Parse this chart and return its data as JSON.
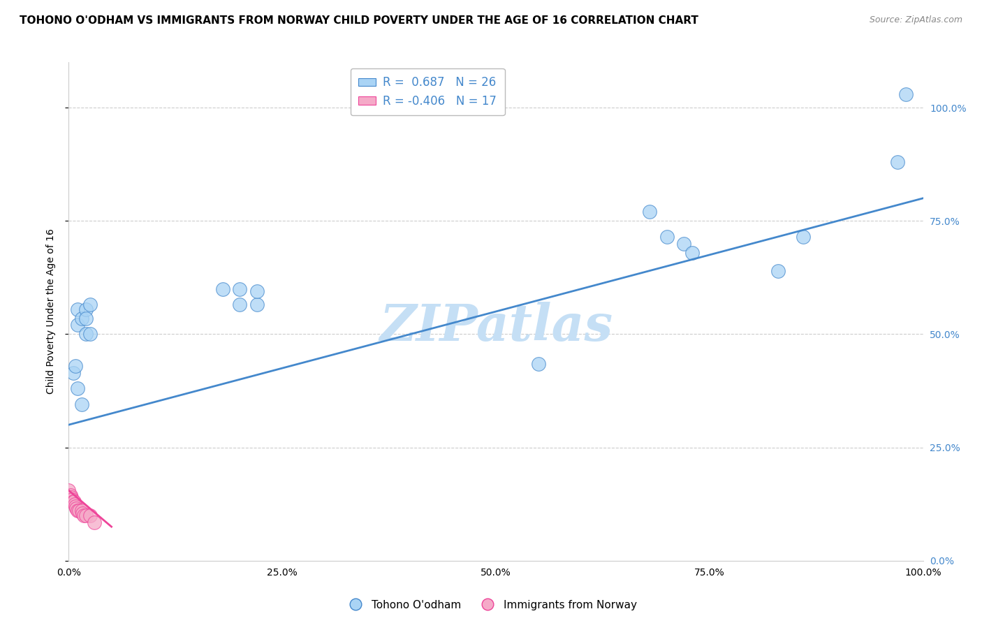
{
  "title": "TOHONO O'ODHAM VS IMMIGRANTS FROM NORWAY CHILD POVERTY UNDER THE AGE OF 16 CORRELATION CHART",
  "source": "Source: ZipAtlas.com",
  "ylabel": "Child Poverty Under the Age of 16",
  "watermark": "ZIPatlas",
  "legend_box": {
    "blue_r": "0.687",
    "blue_n": "26",
    "pink_r": "-0.406",
    "pink_n": "17"
  },
  "blue_scatter_x": [
    0.01,
    0.01,
    0.015,
    0.02,
    0.02,
    0.02,
    0.025,
    0.025,
    0.2,
    0.22,
    0.22,
    0.55,
    0.68,
    0.7,
    0.72,
    0.73,
    0.83,
    0.86,
    0.97,
    0.98,
    0.005,
    0.008,
    0.01,
    0.015,
    0.18,
    0.2
  ],
  "blue_scatter_y": [
    0.555,
    0.52,
    0.535,
    0.555,
    0.535,
    0.5,
    0.565,
    0.5,
    0.6,
    0.565,
    0.595,
    0.435,
    0.77,
    0.715,
    0.7,
    0.68,
    0.64,
    0.715,
    0.88,
    1.03,
    0.415,
    0.43,
    0.38,
    0.345,
    0.6,
    0.565
  ],
  "pink_scatter_x": [
    0.0,
    0.002,
    0.003,
    0.004,
    0.005,
    0.006,
    0.007,
    0.008,
    0.009,
    0.01,
    0.012,
    0.015,
    0.016,
    0.018,
    0.02,
    0.025,
    0.03
  ],
  "pink_scatter_y": [
    0.155,
    0.145,
    0.14,
    0.135,
    0.13,
    0.13,
    0.125,
    0.12,
    0.115,
    0.11,
    0.11,
    0.11,
    0.105,
    0.1,
    0.1,
    0.1,
    0.085
  ],
  "blue_line_x": [
    0.0,
    1.0
  ],
  "blue_line_y": [
    0.3,
    0.8
  ],
  "pink_line_x": [
    0.0,
    0.05
  ],
  "pink_line_y": [
    0.155,
    0.075
  ],
  "blue_color": "#aad4f5",
  "pink_color": "#f5aac8",
  "blue_line_color": "#4488cc",
  "pink_line_color": "#ee4499",
  "dot_size": 200,
  "alpha": 0.75,
  "background_color": "#ffffff",
  "grid_color": "#cccccc",
  "xlim": [
    0.0,
    1.0
  ],
  "ylim": [
    0.0,
    1.1
  ],
  "xticks": [
    0.0,
    0.25,
    0.5,
    0.75,
    1.0
  ],
  "xtick_labels": [
    "0.0%",
    "25.0%",
    "50.0%",
    "75.0%",
    "100.0%"
  ],
  "yticks": [
    0.0,
    0.25,
    0.5,
    0.75,
    1.0
  ],
  "ytick_labels_right": [
    "0.0%",
    "25.0%",
    "50.0%",
    "75.0%",
    "100.0%"
  ],
  "title_fontsize": 11,
  "source_fontsize": 9,
  "label_fontsize": 10,
  "watermark_color": "#c5dff5",
  "watermark_fontsize": 52
}
